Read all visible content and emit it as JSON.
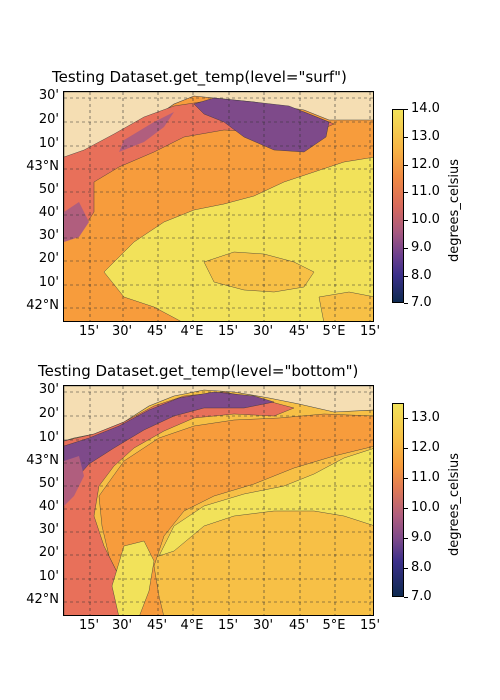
{
  "maps": [
    {
      "title": "Testing Dataset.get_temp(level=\"surf\")",
      "lat_labels": [
        "30'",
        "20'",
        "10'",
        "43°N",
        "50'",
        "40'",
        "30'",
        "20'",
        "10'",
        "42°N"
      ],
      "lon_labels": [
        "15'",
        "30'",
        "45'",
        "4°E",
        "15'",
        "30'",
        "45'",
        "5°E",
        "15'"
      ],
      "colorbar": {
        "label": "degrees_celsius",
        "ticks": [
          "14.0",
          "13.0",
          "12.0",
          "11.0",
          "10.0",
          "9.0",
          "8.0",
          "7.0"
        ],
        "range": [
          7.0,
          14.0
        ]
      }
    },
    {
      "title": "Testing Dataset.get_temp(level=\"bottom\")",
      "lat_labels": [
        "30'",
        "20'",
        "10'",
        "43°N",
        "50'",
        "40'",
        "30'",
        "20'",
        "10'",
        "42°N"
      ],
      "lon_labels": [
        "15'",
        "30'",
        "45'",
        "4°E",
        "15'",
        "30'",
        "45'",
        "5°E",
        "15'"
      ],
      "colorbar": {
        "label": "degrees_celsius",
        "ticks": [
          "13.0",
          "12.0",
          "11.0",
          "10.0",
          "9.0",
          "8.0",
          "7.0"
        ],
        "range": [
          7.0,
          13.5
        ]
      }
    }
  ],
  "colors": {
    "land": "#f5deb3",
    "very_warm": "#f2e25a",
    "warm": "#f7c046",
    "mid_warm": "#f79c3c",
    "mid": "#e8705a",
    "cool": "#b05e7e",
    "cold": "#7e4a8a",
    "coldest": "#3b2f8a",
    "grid": "#333333"
  }
}
